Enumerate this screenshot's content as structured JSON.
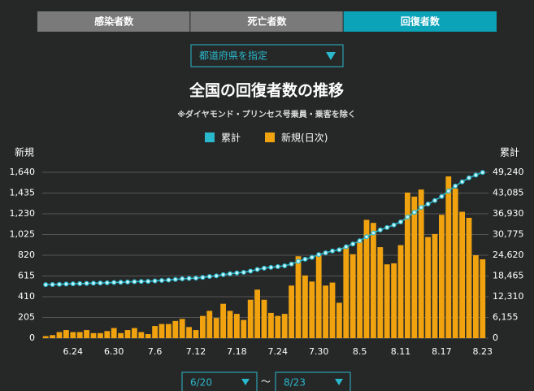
{
  "tabs": [
    "感染者数",
    "死亡者数",
    "回復者数"
  ],
  "active_tab": 2,
  "prefecture_select": "都道府県を指定",
  "date_range": {
    "from": "6/20",
    "separator": "〜",
    "to": "8/23"
  },
  "chart_data": {
    "type": "combo",
    "title": "全国の回復者数の推移",
    "subtitle": "※ダイヤモンド・プリンセス号乗員・乗客を除く",
    "y_label": "新規",
    "y2_label": "累計",
    "categories": [
      null,
      null,
      null,
      null,
      "6.24",
      null,
      null,
      null,
      null,
      null,
      "6.30",
      null,
      null,
      null,
      null,
      null,
      "7.6",
      null,
      null,
      null,
      null,
      null,
      "7.12",
      null,
      null,
      null,
      null,
      null,
      "7.18",
      null,
      null,
      null,
      null,
      null,
      "7.24",
      null,
      null,
      null,
      null,
      null,
      "7.30",
      null,
      null,
      null,
      null,
      null,
      "8.5",
      null,
      null,
      null,
      null,
      null,
      "8.11",
      null,
      null,
      null,
      null,
      null,
      "8.17",
      null,
      null,
      null,
      null,
      null,
      "8.23"
    ],
    "series": [
      {
        "name": "累計",
        "color": "#2ab8cc",
        "axis": "y2",
        "values": [
          15900,
          15930,
          15990,
          16070,
          16130,
          16190,
          16270,
          16320,
          16370,
          16440,
          16540,
          16590,
          16670,
          16770,
          16830,
          16870,
          16990,
          17130,
          17270,
          17440,
          17630,
          17740,
          17820,
          18040,
          18310,
          18510,
          18850,
          19120,
          19360,
          19540,
          19920,
          20400,
          20780,
          21030,
          21250,
          21490,
          22010,
          22820,
          23440,
          24000,
          24820,
          25340,
          25890,
          26240,
          27140,
          27970,
          28930,
          30100,
          31240,
          32140,
          32870,
          33610,
          34530,
          35970,
          37370,
          38840,
          39840,
          40870,
          42090,
          43690,
          45170,
          46420,
          47610,
          48430,
          49210
        ]
      },
      {
        "name": "新規(日次)",
        "color": "#f0a30f",
        "values": [
          20,
          30,
          60,
          80,
          60,
          60,
          80,
          50,
          50,
          70,
          100,
          50,
          80,
          100,
          60,
          40,
          120,
          140,
          140,
          170,
          190,
          110,
          80,
          220,
          270,
          200,
          340,
          270,
          240,
          180,
          380,
          480,
          380,
          250,
          220,
          240,
          520,
          810,
          620,
          560,
          820,
          520,
          550,
          350,
          900,
          830,
          960,
          1170,
          1140,
          900,
          730,
          740,
          920,
          1440,
          1400,
          1470,
          1000,
          1030,
          1220,
          1600,
          1480,
          1250,
          1190,
          820,
          780
        ]
      }
    ],
    "ylim": [
      0,
      1640
    ],
    "yticks": [
      0,
      205,
      410,
      615,
      820,
      {
        "value": 1025,
        "label": "1,025"
      },
      {
        "value": 1230,
        "label": "1,230"
      },
      {
        "value": 1435,
        "label": "1,435"
      },
      {
        "value": 1640,
        "label": "1,640"
      }
    ],
    "y2lim": [
      0,
      49240
    ],
    "y2ticks": [
      0,
      {
        "value": 6155,
        "label": "6,155"
      },
      {
        "value": 12310,
        "label": "12,310"
      },
      {
        "value": 18465,
        "label": "18,465"
      },
      {
        "value": 24620,
        "label": "24,620"
      },
      {
        "value": 30775,
        "label": "30,775"
      },
      {
        "value": 36930,
        "label": "36,930"
      },
      {
        "value": 43085,
        "label": "43,085"
      },
      {
        "value": 49240,
        "label": "49,240"
      }
    ],
    "grid": true
  }
}
